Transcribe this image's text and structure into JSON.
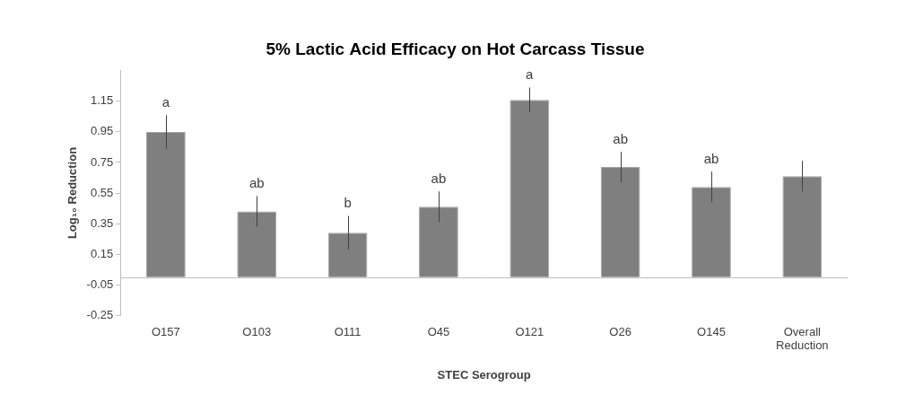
{
  "chart_data": {
    "type": "bar",
    "title": "5% Lactic Acid Efficacy on Hot Carcass Tissue",
    "x_label": "STEC Serogroup",
    "y_label": "Log₁₀ Reduction",
    "categories": [
      "O157",
      "O103",
      "O111",
      "O45",
      "O121",
      "O26",
      "O145",
      "Overall Reduction"
    ],
    "values": [
      0.95,
      0.43,
      0.29,
      0.46,
      1.16,
      0.72,
      0.59,
      0.66
    ],
    "errors": [
      0.11,
      0.1,
      0.11,
      0.1,
      0.08,
      0.1,
      0.1,
      0.1
    ],
    "annotations": [
      "a",
      "ab",
      "b",
      "ab",
      "a",
      "ab",
      "ab",
      null
    ],
    "color": "#7f7f7f",
    "ylim": [
      -0.25,
      1.35
    ],
    "yticks": [
      -0.25,
      -0.05,
      0.15,
      0.35,
      0.55,
      0.75,
      0.95,
      1.15
    ],
    "grid": false
  }
}
